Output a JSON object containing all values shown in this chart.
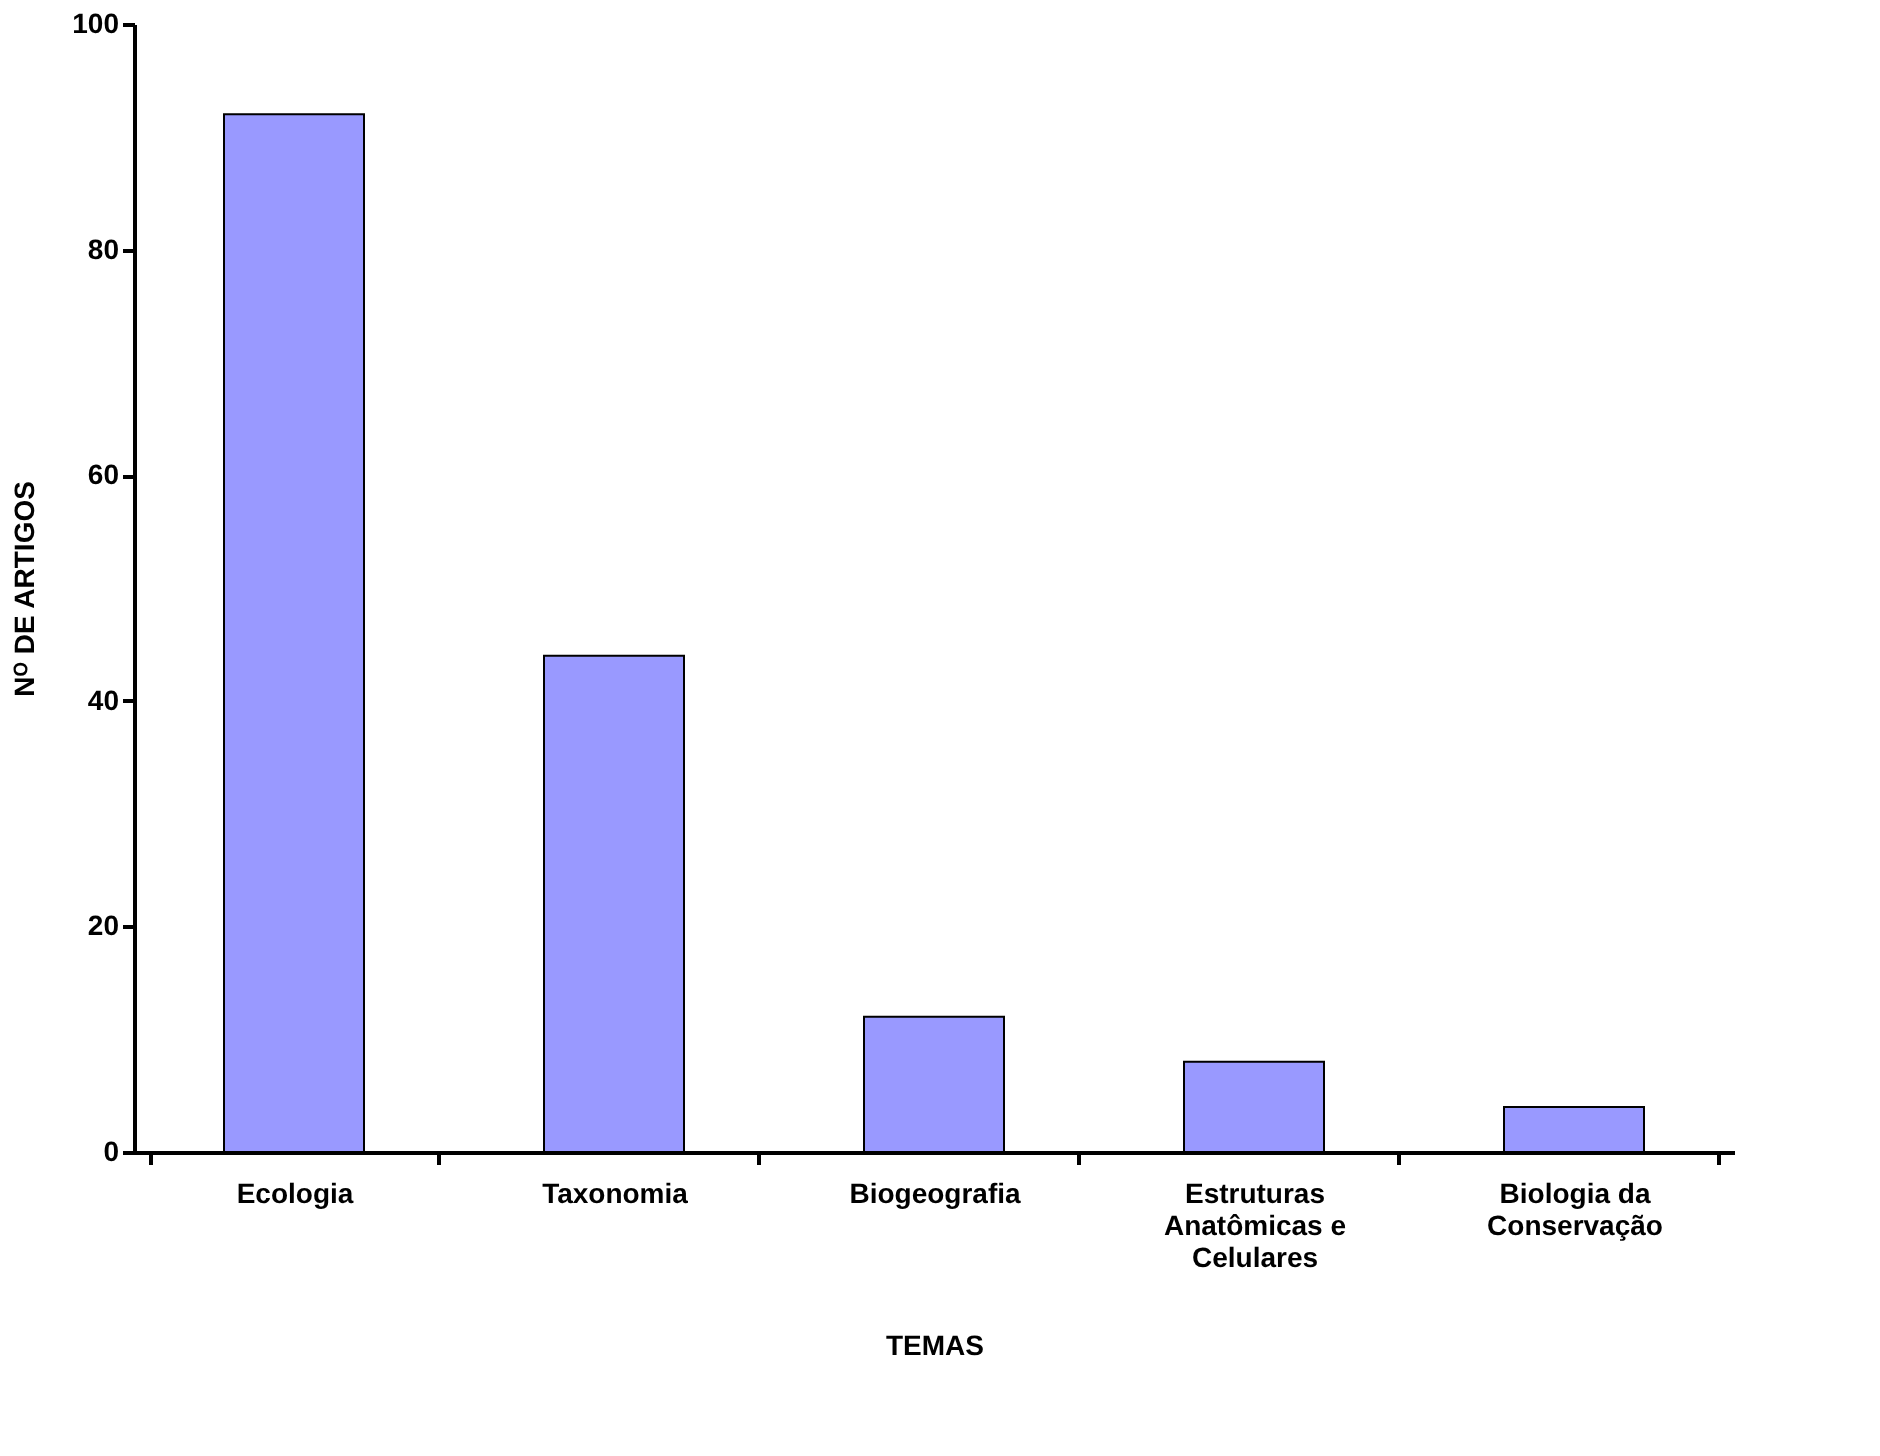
{
  "chart_data": {
    "type": "bar",
    "categories": [
      "Ecologia",
      "Taxonomia",
      "Biogeografia",
      "Estruturas\nAnatômicas e\nCelulares",
      "Biologia da\nConservação"
    ],
    "values": [
      92,
      44,
      12,
      8,
      4
    ],
    "color": "#9999ff",
    "xlabel": "TEMAS",
    "ylabel": "Nᴼ DE ARTIGOS",
    "ylim": [
      0,
      100
    ],
    "yticks": [
      0,
      20,
      40,
      60,
      80,
      100
    ],
    "grid": false
  }
}
